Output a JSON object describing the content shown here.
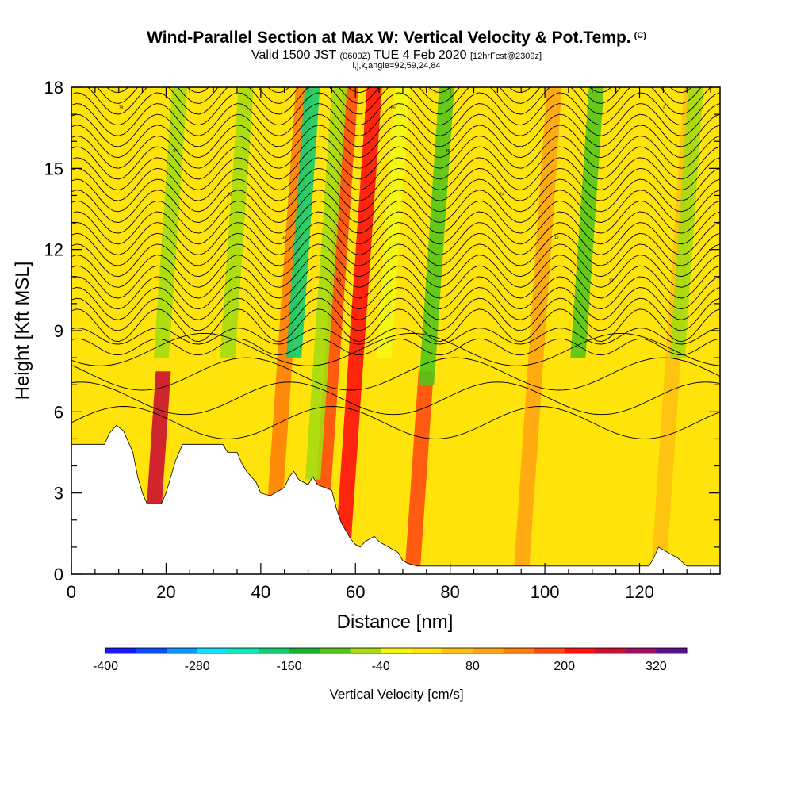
{
  "header": {
    "title": "Wind-Parallel Section at Max W: Vertical Velocity & Pot.Temp.",
    "copyright": "(C)",
    "valid_prefix": "Valid 1500 JST",
    "valid_utc": "(0600Z)",
    "valid_date": "TUE 4 Feb 2020",
    "forecast": "[12hrFcst@2309z]",
    "grid_info": "i,j,k,angle=92,59,24,84"
  },
  "chart_data": {
    "type": "heatmap",
    "title": "Wind-Parallel Section at Max W: Vertical Velocity & Pot.Temp.",
    "xlabel": "Distance [nm]",
    "ylabel": "Height [Kft MSL]",
    "xlim": [
      0,
      137
    ],
    "ylim": [
      0,
      18
    ],
    "x_ticks": [
      0,
      20,
      40,
      60,
      80,
      100,
      120
    ],
    "y_ticks": [
      0,
      3,
      6,
      9,
      12,
      15,
      18
    ],
    "colorbar": {
      "title": "Vertical Velocity [cm/s]",
      "min": -400,
      "max": 360,
      "step": 40,
      "tick_values": [
        -400,
        -280,
        -160,
        -40,
        80,
        200,
        320
      ],
      "tick_labels": [
        "-400",
        "-280",
        "-160",
        "-40",
        "80",
        "200",
        "320"
      ],
      "colors": [
        "#1818ff",
        "#0a4cff",
        "#0a98ff",
        "#12e0ff",
        "#10e6b8",
        "#14cc70",
        "#18b030",
        "#55c418",
        "#a6dc10",
        "#f2f812",
        "#ffe30a",
        "#ffc010",
        "#ffa412",
        "#ff7f0a",
        "#ff4b12",
        "#ff1010",
        "#cc1032",
        "#a01062",
        "#5a0f8a"
      ]
    },
    "updraft_bands": [
      {
        "x": 16.5,
        "ymax": 7.5,
        "w": 240
      },
      {
        "x": 42,
        "ymax": 18,
        "w": 120
      },
      {
        "x": 52,
        "ymax": 18,
        "w": 180
      },
      {
        "x": 57,
        "ymax": 18,
        "w": 200
      },
      {
        "x": 72,
        "ymax": 7.5,
        "w": 160
      },
      {
        "x": 95,
        "ymax": 18,
        "w": 80
      },
      {
        "x": 124,
        "ymax": 18,
        "w": 60
      }
    ],
    "downdraft_bands": [
      {
        "x": 19,
        "ymin": 8,
        "w": -80
      },
      {
        "x": 33,
        "ymin": 8,
        "w": -60
      },
      {
        "x": 47,
        "ymin": 8,
        "w": -200
      },
      {
        "x": 66,
        "ymin": 8,
        "w": -40
      },
      {
        "x": 75,
        "ymin": 7,
        "w": -120
      },
      {
        "x": 107,
        "ymin": 8,
        "w": -120
      },
      {
        "x": 128,
        "ymin": 8,
        "w": -80
      },
      {
        "x": 51,
        "ymin": 3.5,
        "w": -60
      }
    ],
    "contour_labels": [
      "78",
      "84",
      "82",
      "16",
      "18",
      "80",
      "86",
      "14",
      "12",
      "10",
      "8"
    ],
    "terrain": [
      [
        0,
        4.8
      ],
      [
        7,
        4.8
      ],
      [
        8,
        5.2
      ],
      [
        9.5,
        5.5
      ],
      [
        11,
        5.3
      ],
      [
        12,
        4.9
      ],
      [
        13,
        4.5
      ],
      [
        14,
        3.6
      ],
      [
        15,
        3.0
      ],
      [
        16,
        2.6
      ],
      [
        19,
        2.6
      ],
      [
        20,
        3.0
      ],
      [
        21,
        3.6
      ],
      [
        22,
        4.2
      ],
      [
        23.5,
        4.8
      ],
      [
        32,
        4.8
      ],
      [
        33,
        4.5
      ],
      [
        35,
        4.5
      ],
      [
        36,
        4.1
      ],
      [
        37,
        3.8
      ],
      [
        39,
        3.4
      ],
      [
        40,
        3.0
      ],
      [
        42,
        2.9
      ],
      [
        45,
        3.2
      ],
      [
        46,
        3.6
      ],
      [
        47,
        3.8
      ],
      [
        48,
        3.5
      ],
      [
        50,
        3.3
      ],
      [
        51,
        3.6
      ],
      [
        52,
        3.3
      ],
      [
        55,
        3.1
      ],
      [
        56,
        2.4
      ],
      [
        57,
        1.9
      ],
      [
        58,
        1.6
      ],
      [
        59,
        1.3
      ],
      [
        60,
        1.1
      ],
      [
        61,
        1.0
      ],
      [
        62,
        1.2
      ],
      [
        64,
        1.4
      ],
      [
        65,
        1.2
      ],
      [
        67,
        1.0
      ],
      [
        68,
        0.9
      ],
      [
        69,
        0.8
      ],
      [
        70,
        0.5
      ],
      [
        71,
        0.4
      ],
      [
        73,
        0.3
      ],
      [
        122,
        0.3
      ],
      [
        123,
        0.6
      ],
      [
        124,
        1.0
      ],
      [
        126,
        0.8
      ],
      [
        128,
        0.6
      ],
      [
        130,
        0.3
      ],
      [
        137,
        0.3
      ]
    ]
  }
}
